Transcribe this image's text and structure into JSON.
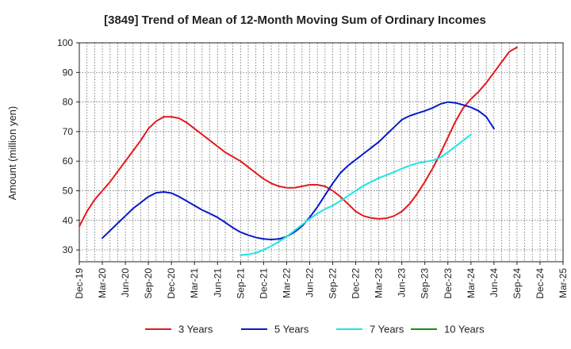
{
  "chart_data": {
    "type": "line",
    "title": "[3849]  Trend of Mean of 12-Month Moving Sum of Ordinary Incomes",
    "xlabel": "",
    "ylabel": "Amount (million yen)",
    "ylim": [
      26,
      100
    ],
    "yticks": [
      30,
      40,
      50,
      60,
      70,
      80,
      90,
      100
    ],
    "x_tick_labels": [
      "Dec-19",
      "Mar-20",
      "Jun-20",
      "Sep-20",
      "Dec-20",
      "Mar-21",
      "Jun-21",
      "Sep-21",
      "Dec-21",
      "Mar-22",
      "Jun-22",
      "Sep-22",
      "Dec-22",
      "Mar-23",
      "Jun-23",
      "Sep-23",
      "Dec-23",
      "Mar-24",
      "Jun-24",
      "Sep-24",
      "Dec-24",
      "Mar-25"
    ],
    "grid": true,
    "legend_position": "bottom",
    "series": [
      {
        "name": "3 Years",
        "color": "#e31a1c",
        "start_index": 0,
        "values": [
          38,
          43,
          47,
          50,
          53,
          56.5,
          60,
          63.5,
          67,
          71,
          73.5,
          75,
          75,
          74.5,
          73,
          71,
          69,
          67,
          65,
          63,
          61.5,
          60,
          58,
          56,
          54,
          52.5,
          51.5,
          51,
          51,
          51.5,
          52,
          52,
          51.5,
          50,
          48,
          45.5,
          43,
          41.5,
          40.8,
          40.5,
          40.7,
          41.5,
          43,
          45.5,
          49,
          53,
          57.5,
          62.5,
          68,
          73.5,
          78,
          81,
          83.5,
          86.5,
          90,
          93.5,
          97,
          98.5
        ]
      },
      {
        "name": "5 Years",
        "color": "#0a1ac8",
        "start_index": 3,
        "values": [
          34,
          36.5,
          39,
          41.5,
          44,
          46,
          48,
          49.3,
          49.6,
          49.2,
          48,
          46.5,
          45,
          43.5,
          42.3,
          41,
          39.3,
          37.5,
          36,
          35,
          34.2,
          33.7,
          33.5,
          33.7,
          34.5,
          36,
          38,
          41,
          44.5,
          48.5,
          52.5,
          56,
          58.5,
          60.5,
          62.5,
          64.5,
          66.5,
          69,
          71.5,
          74,
          75.3,
          76.2,
          77,
          78,
          79.3,
          80,
          79.7,
          79,
          78.2,
          77,
          75,
          71
        ]
      },
      {
        "name": "7 Years",
        "color": "#1de5e5",
        "start_index": 21,
        "values": [
          28.2,
          28.5,
          29,
          30,
          31.3,
          32.8,
          34.5,
          36.5,
          38.5,
          40.5,
          42.3,
          43.8,
          45,
          46.5,
          48.3,
          50,
          51.7,
          53,
          54.3,
          55.3,
          56.3,
          57.5,
          58.5,
          59.3,
          59.8,
          60.2,
          61.2,
          63,
          65,
          67,
          69
        ]
      },
      {
        "name": "10 Years",
        "color": "#1e8a1e",
        "start_index": 0,
        "values": []
      }
    ]
  }
}
